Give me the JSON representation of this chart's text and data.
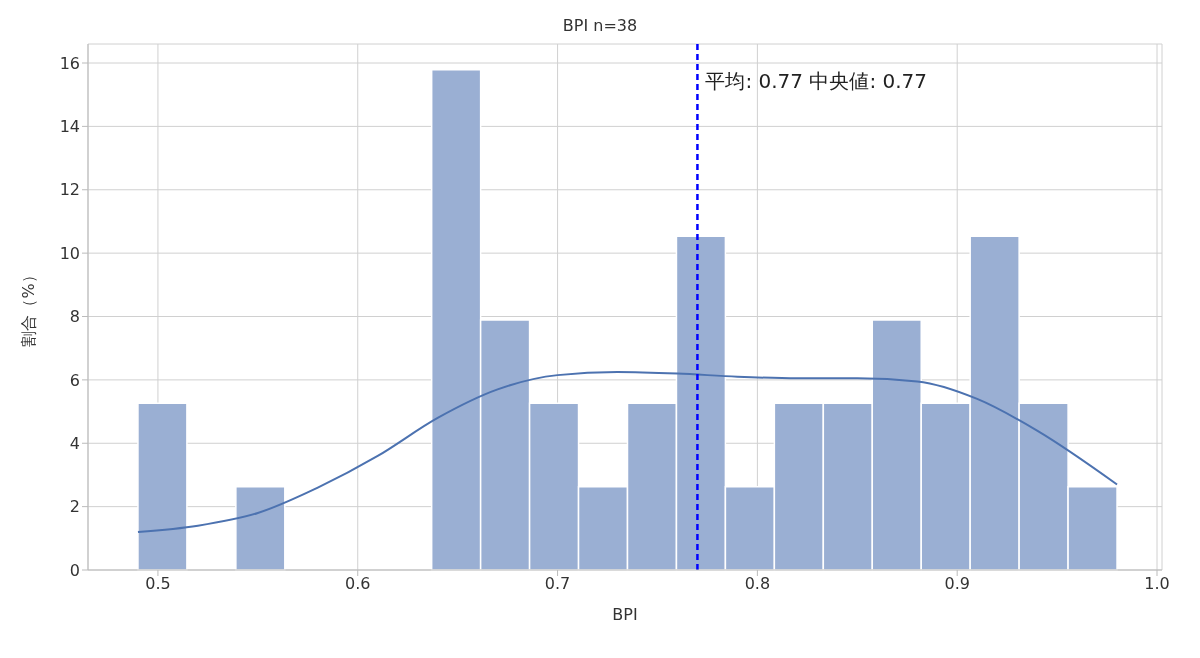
{
  "chart_data": {
    "type": "histogram",
    "title": "BPI n=38",
    "xlabel": "BPI",
    "ylabel": "割合（%）",
    "bins": [
      0.49,
      0.5145,
      0.539,
      0.5635,
      0.588,
      0.6125,
      0.637,
      0.6615,
      0.686,
      0.7105,
      0.735,
      0.7595,
      0.784,
      0.8085,
      0.833,
      0.8575,
      0.882,
      0.9065,
      0.931,
      0.9555,
      0.98
    ],
    "values": [
      5.26,
      0,
      2.63,
      0,
      0,
      0,
      15.79,
      7.89,
      5.26,
      2.63,
      5.26,
      10.53,
      2.63,
      5.26,
      5.26,
      7.89,
      5.26,
      10.53,
      5.26,
      2.63
    ],
    "color": "#9aafd3",
    "series": [
      {
        "type": "line",
        "color": "#4c72b0",
        "x": [
          0.49,
          0.52,
          0.55,
          0.58,
          0.61,
          0.64,
          0.67,
          0.7,
          0.73,
          0.76,
          0.79,
          0.82,
          0.85,
          0.88,
          0.91,
          0.94,
          0.98
        ],
        "values": [
          1.2,
          1.4,
          1.8,
          2.6,
          3.6,
          4.8,
          5.7,
          6.15,
          6.25,
          6.2,
          6.1,
          6.05,
          6.05,
          5.95,
          5.4,
          4.4,
          2.7
        ]
      }
    ],
    "ref_lines": [
      {
        "axis": "x",
        "value": 0.77,
        "label": "平均: 0.77 中央値: 0.77",
        "color": "#0000ff",
        "line_style": "dashed"
      }
    ],
    "xlim": [
      0.465,
      1.0025
    ],
    "xticks": [
      {
        "value": 0.5,
        "label": "0.5"
      },
      {
        "value": 0.6,
        "label": "0.6"
      },
      {
        "value": 0.7,
        "label": "0.7"
      },
      {
        "value": 0.8,
        "label": "0.8"
      },
      {
        "value": 0.9,
        "label": "0.9"
      },
      {
        "value": 1.0,
        "label": "1.0"
      }
    ],
    "ylim": [
      0,
      16.6
    ],
    "yticks": [
      0,
      2,
      4,
      6,
      8,
      10,
      12,
      14,
      16
    ],
    "grid": true,
    "marker": "none"
  }
}
